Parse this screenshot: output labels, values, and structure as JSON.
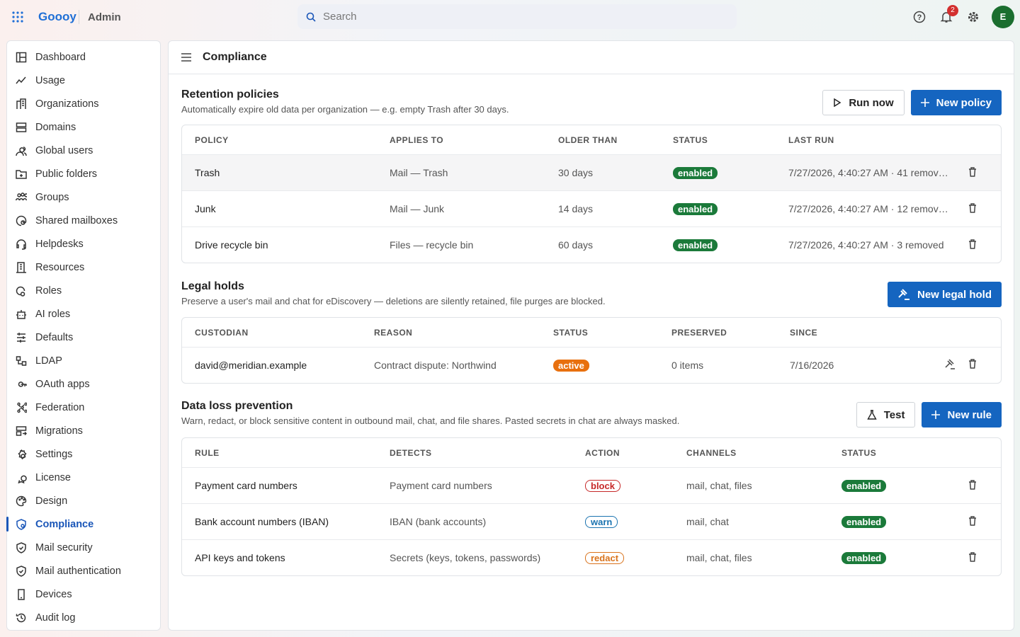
{
  "header": {
    "brand": "Goooy",
    "section": "Admin",
    "search_placeholder": "Search",
    "notification_count": "2",
    "avatar": "E"
  },
  "nav": {
    "active": "Compliance",
    "items": [
      "Dashboard",
      "Usage",
      "Organizations",
      "Domains",
      "Global users",
      "Public folders",
      "Groups",
      "Shared mailboxes",
      "Helpdesks",
      "Resources",
      "Roles",
      "AI roles",
      "Defaults",
      "LDAP",
      "OAuth apps",
      "Federation",
      "Migrations",
      "Settings",
      "License",
      "Design",
      "Compliance",
      "Mail security",
      "Mail authentication",
      "Devices",
      "Audit log"
    ]
  },
  "page": {
    "title": "Compliance"
  },
  "retention": {
    "title": "Retention policies",
    "description": "Automatically expire old data per organization — e.g. empty Trash after 30 days.",
    "buttons": [
      "Run now",
      "New policy"
    ],
    "columns": [
      "POLICY",
      "APPLIES TO",
      "OLDER THAN",
      "STATUS",
      "LAST RUN"
    ],
    "rows": [
      [
        "Trash",
        "Mail — Trash",
        "30 days",
        {
          "text": "enabled",
          "color": "#1b7a3a",
          "variant": "filled"
        },
        "7/27/2026, 4:40:27 AM · 41 remov…"
      ],
      [
        "Junk",
        "Mail — Junk",
        "14 days",
        {
          "text": "enabled",
          "color": "#1b7a3a",
          "variant": "filled"
        },
        "7/27/2026, 4:40:27 AM · 12 remov…"
      ],
      [
        "Drive recycle bin",
        "Files — recycle bin",
        "60 days",
        {
          "text": "enabled",
          "color": "#1b7a3a",
          "variant": "filled"
        },
        "7/27/2026, 4:40:27 AM · 3 removed"
      ]
    ]
  },
  "legal": {
    "title": "Legal holds",
    "description": "Preserve a user's mail and chat for eDiscovery — deletions are silently retained, file purges are blocked.",
    "buttons": [
      "New legal hold"
    ],
    "columns": [
      "CUSTODIAN",
      "REASON",
      "STATUS",
      "PRESERVED",
      "SINCE"
    ],
    "rows": [
      [
        "david@meridian.example",
        "Contract dispute: Northwind",
        {
          "text": "active",
          "color": "#e8700e",
          "variant": "filled"
        },
        "0 items",
        "7/16/2026"
      ]
    ]
  },
  "dlp": {
    "title": "Data loss prevention",
    "description": "Warn, redact, or block sensitive content in outbound mail, chat, and file shares. Pasted secrets in chat are always masked.",
    "buttons": [
      "Test",
      "New rule"
    ],
    "columns": [
      "RULE",
      "DETECTS",
      "ACTION",
      "CHANNELS",
      "STATUS"
    ],
    "rows": [
      [
        "Payment card numbers",
        "Payment card numbers",
        {
          "text": "block",
          "color": "#c62828",
          "variant": "outline"
        },
        "mail, chat, files",
        {
          "text": "enabled",
          "color": "#1b7a3a",
          "variant": "filled"
        }
      ],
      [
        "Bank account numbers (IBAN)",
        "IBAN (bank accounts)",
        {
          "text": "warn",
          "color": "#1a73b0",
          "variant": "outline"
        },
        "mail, chat",
        {
          "text": "enabled",
          "color": "#1b7a3a",
          "variant": "filled"
        }
      ],
      [
        "API keys and tokens",
        "Secrets (keys, tokens, passwords)",
        {
          "text": "redact",
          "color": "#d9731c",
          "variant": "outline"
        },
        "mail, chat, files",
        {
          "text": "enabled",
          "color": "#1b7a3a",
          "variant": "filled"
        }
      ]
    ]
  }
}
